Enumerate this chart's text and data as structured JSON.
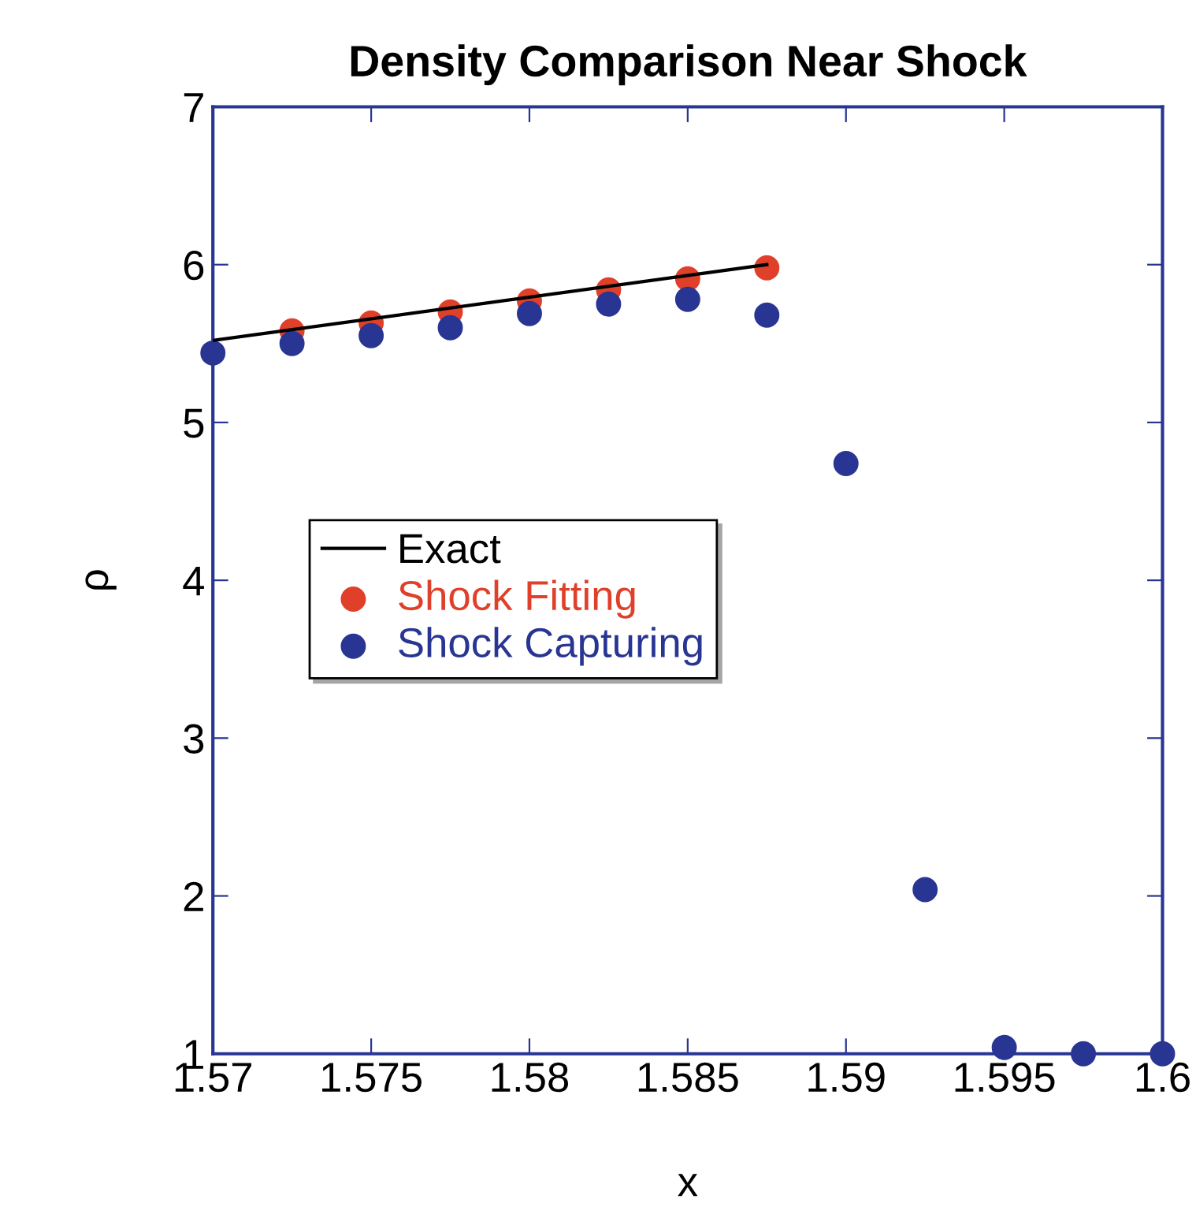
{
  "chart_data": {
    "type": "scatter",
    "title": "Density Comparison Near Shock",
    "xlabel": "x",
    "ylabel": "ρ",
    "xlim": [
      1.57,
      1.6
    ],
    "xticks": [
      1.57,
      1.575,
      1.58,
      1.585,
      1.59,
      1.595,
      {
        "value": 1.6,
        "label": "1.6"
      }
    ],
    "ylim": [
      1,
      7
    ],
    "yticks": [
      1,
      2,
      3,
      4,
      5,
      6,
      7
    ],
    "grid": false,
    "legend": "left",
    "series": [
      {
        "name": "Exact",
        "type": "line",
        "marker": "none",
        "color": "#000000",
        "x": [
          1.57,
          1.5875
        ],
        "values": [
          5.52,
          6.0
        ]
      },
      {
        "name": "Shock Fitting",
        "marker": "circle",
        "color": "#e0402a",
        "x": [
          1.5725,
          1.575,
          1.5775,
          1.58,
          1.5825,
          1.585,
          1.5875
        ],
        "values": [
          5.58,
          5.63,
          5.7,
          5.77,
          5.84,
          5.91,
          5.98
        ]
      },
      {
        "name": "Shock Capturing",
        "marker": "circle",
        "color": "#283593",
        "x": [
          1.57,
          1.5725,
          1.575,
          1.5775,
          1.58,
          1.5825,
          1.585,
          1.5875,
          1.59,
          1.5925,
          1.595,
          1.5975,
          1.6
        ],
        "values": [
          5.44,
          5.5,
          5.55,
          5.6,
          5.69,
          5.75,
          5.78,
          5.68,
          4.74,
          2.04,
          1.04,
          1.0,
          1.0
        ]
      }
    ]
  }
}
